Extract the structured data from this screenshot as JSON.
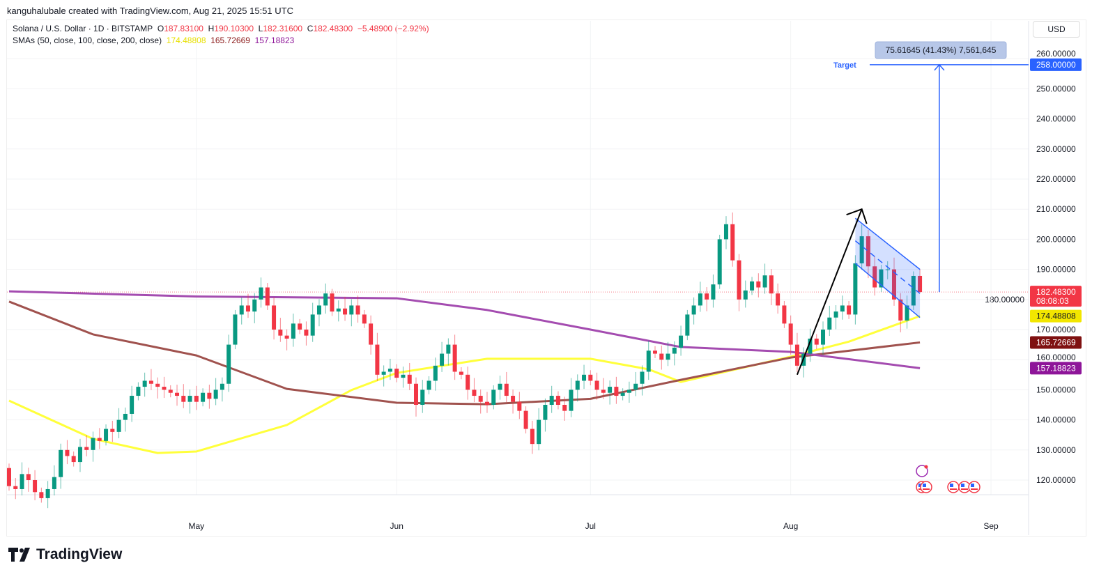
{
  "credit": "kanguhalubale created with TradingView.com, Aug 21, 2025 15:51 UTC",
  "symbol": {
    "title": "Solana / U.S. Dollar · 1D · BITSTAMP",
    "o_label": "O",
    "o": "187.83100",
    "h_label": "H",
    "h": "190.10300",
    "l_label": "L",
    "l": "182.31600",
    "c_label": "C",
    "c": "182.48300",
    "change": "−5.48900 (−2.92%)"
  },
  "sma_legend": {
    "label": "SMAs (50, close, 100, close, 200, close)",
    "sma50": "174.48808",
    "sma100": "165.72669",
    "sma200": "157.18823"
  },
  "currency": "USD",
  "footer": {
    "brand": "TradingView"
  },
  "colors": {
    "up": "#089981",
    "down": "#F23645",
    "sma50": "#FFFF3B",
    "sma100": "#A0524E",
    "sma200": "#A44CB0",
    "drawing": "#2962FF",
    "sma50_label": "#F2E600",
    "sma100_label": "#7F1111",
    "sma200_label": "#8E1599"
  },
  "chart_data": {
    "type": "candlestick",
    "start_date": "2025-04-02",
    "ylim": [
      113,
      262
    ],
    "yticks": [
      "120.00000",
      "130.00000",
      "140.00000",
      "150.00000",
      "160.00000",
      "170.00000",
      "180.00000",
      "190.00000",
      "200.00000",
      "210.00000",
      "220.00000",
      "230.00000",
      "240.00000",
      "250.00000",
      "260.00000"
    ],
    "xticks": [
      {
        "label": "May",
        "date": "2025-05-01"
      },
      {
        "label": "Jun",
        "date": "2025-06-01"
      },
      {
        "label": "Jul",
        "date": "2025-07-01"
      },
      {
        "label": "Aug",
        "date": "2025-08-01"
      },
      {
        "label": "Sep",
        "date": "2025-09-01"
      }
    ],
    "grid": true,
    "close": [
      118,
      117,
      122,
      120,
      116,
      114,
      117,
      121,
      130,
      128,
      126,
      131,
      130,
      134,
      133,
      137,
      136,
      140,
      142,
      148,
      151,
      153,
      152,
      151,
      150,
      149,
      148,
      146,
      148,
      146,
      149,
      147,
      150,
      152,
      165,
      175,
      178,
      176,
      180,
      184,
      178,
      170,
      168,
      167,
      172,
      170,
      168,
      175,
      178,
      182,
      176,
      177,
      175,
      178,
      175,
      172,
      165,
      155,
      156,
      157,
      154,
      155,
      152,
      145,
      150,
      153,
      158,
      162,
      165,
      156,
      155,
      150,
      148,
      146,
      145,
      150,
      152,
      148,
      146,
      143,
      137,
      132,
      140,
      145,
      148,
      145,
      143,
      150,
      153,
      155,
      153,
      150,
      149,
      151,
      148,
      149,
      150,
      152,
      156,
      163,
      162,
      160,
      162,
      164,
      168,
      175,
      178,
      182,
      180,
      185,
      200,
      205,
      193,
      180,
      183,
      186,
      184,
      188,
      182,
      178,
      172,
      165,
      158,
      162,
      167,
      165,
      170,
      174,
      176,
      178,
      175,
      192,
      201,
      191,
      184,
      190,
      190,
      180,
      173,
      178,
      187.831,
      182.483
    ],
    "last_candle": {
      "open": 187.831,
      "high": 190.103,
      "low": 182.316,
      "close": 182.483
    },
    "sma": [
      {
        "period": 50,
        "value": "174.48808",
        "points": [
          [
            "2025-04-02",
            146.4
          ],
          [
            "2025-04-15",
            133.7
          ],
          [
            "2025-04-25",
            129
          ],
          [
            "2025-05-01",
            129.5
          ],
          [
            "2025-05-15",
            138.3
          ],
          [
            "2025-05-25",
            149.9
          ],
          [
            "2025-06-01",
            155.6
          ],
          [
            "2025-06-15",
            160.3
          ],
          [
            "2025-07-01",
            160.3
          ],
          [
            "2025-07-10",
            156.8
          ],
          [
            "2025-07-15",
            152.6
          ],
          [
            "2025-08-01",
            161
          ],
          [
            "2025-08-10",
            166
          ],
          [
            "2025-08-21",
            174.49
          ]
        ]
      },
      {
        "period": 100,
        "value": "165.72669",
        "points": [
          [
            "2025-04-02",
            179.3
          ],
          [
            "2025-04-15",
            168.4
          ],
          [
            "2025-05-01",
            161.4
          ],
          [
            "2025-05-15",
            150.3
          ],
          [
            "2025-06-01",
            145.7
          ],
          [
            "2025-06-15",
            145.2
          ],
          [
            "2025-07-01",
            147
          ],
          [
            "2025-07-15",
            153.3
          ],
          [
            "2025-08-01",
            160.7
          ],
          [
            "2025-08-21",
            165.73
          ]
        ]
      },
      {
        "period": 200,
        "value": "157.18823",
        "points": [
          [
            "2025-04-02",
            182.7
          ],
          [
            "2025-05-01",
            181
          ],
          [
            "2025-06-01",
            180.4
          ],
          [
            "2025-06-15",
            176.5
          ],
          [
            "2025-07-01",
            170
          ],
          [
            "2025-07-15",
            164.2
          ],
          [
            "2025-08-01",
            162.6
          ],
          [
            "2025-08-21",
            157.19
          ]
        ]
      }
    ],
    "annotations": {
      "target_label": "Target",
      "target_price": "258.00000",
      "target_value": 258,
      "measure_label": "75.61645 (41.43%) 7,561,645",
      "last_price_label": "182.48300",
      "countdown": "08:08:03",
      "arrow": [
        [
          "2025-08-02",
          155
        ],
        [
          "2025-08-12",
          210
        ]
      ],
      "flag_upper": [
        [
          "2025-08-11",
          207
        ],
        [
          "2025-08-21",
          190
        ]
      ],
      "flag_lower": [
        [
          "2025-08-11",
          192
        ],
        [
          "2025-08-21",
          174
        ]
      ],
      "flag_mid": [
        [
          "2025-08-11",
          199.5
        ],
        [
          "2025-08-21",
          182
        ]
      ],
      "measure_from": 182.48,
      "measure_date": "2025-08-24"
    }
  }
}
